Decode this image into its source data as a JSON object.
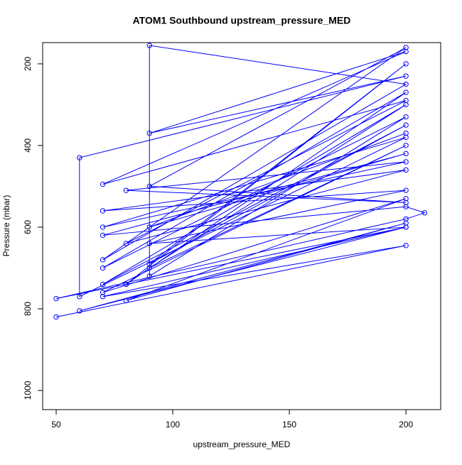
{
  "chart_data": {
    "type": "line",
    "title": "ATOM1 Southbound upstream_pressure_MED",
    "x_label": "upstream_pressure_MED",
    "y_label": "Pressure (mbar)",
    "series": [
      {
        "color": "#0000ff",
        "x": [
          50,
          200,
          70,
          200,
          60,
          200,
          80,
          200,
          70,
          200,
          90,
          200,
          70,
          200,
          90,
          200,
          80,
          200,
          70,
          200,
          90,
          90,
          200,
          70,
          200,
          90,
          200,
          80,
          200,
          70,
          200,
          60,
          60,
          200,
          90,
          200,
          70,
          200,
          80,
          200,
          70,
          200,
          90,
          200,
          50,
          200,
          208,
          200,
          70,
          200,
          90,
          200
        ],
        "values": [
          820,
          645,
          770,
          600,
          805,
          590,
          780,
          530,
          760,
          400,
          700,
          300,
          740,
          350,
          690,
          200,
          740,
          270,
          700,
          330,
          720,
          155,
          250,
          680,
          160,
          500,
          540,
          510,
          440,
          600,
          380,
          770,
          430,
          230,
          370,
          170,
          495,
          290,
          640,
          460,
          560,
          510,
          640,
          600,
          775,
          580,
          565,
          550,
          620,
          420,
          600,
          370
        ]
      }
    ],
    "xlim": [
      44.2,
      214.9
    ],
    "ylim": [
      1047,
      148
    ],
    "xticks": [
      50,
      100,
      150,
      200
    ],
    "yticks": [
      200,
      400,
      600,
      800,
      1000
    ]
  }
}
